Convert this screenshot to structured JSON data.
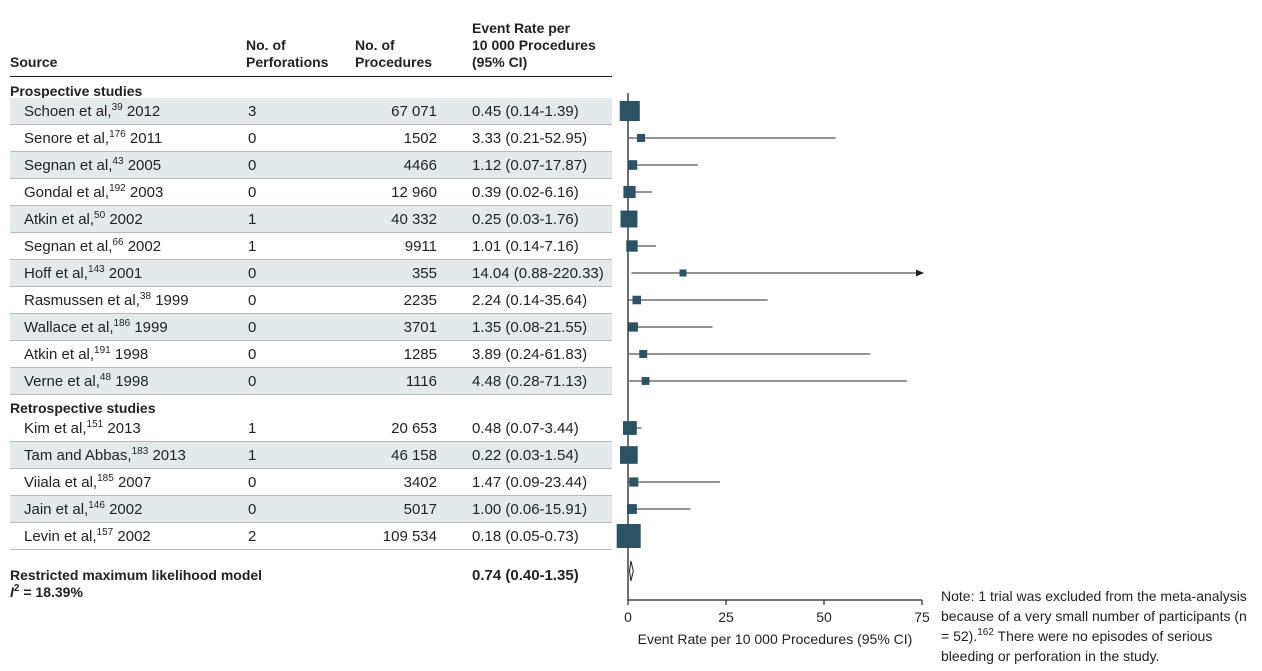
{
  "headers": {
    "source": "Source",
    "perforations": [
      "No. of",
      "Perforations"
    ],
    "procedures": [
      "No. of",
      "Procedures"
    ],
    "rate": [
      "Event Rate per",
      "10 000 Procedures",
      "(95% CI)"
    ]
  },
  "groups": [
    {
      "label": "Prospective studies",
      "rows": [
        {
          "author": "Schoen et al,",
          "ref": "39",
          "year": "2012",
          "perforations": "3",
          "procedures": "67 071",
          "rate_text": "0.45 (0.14-1.39)"
        },
        {
          "author": "Senore et al,",
          "ref": "176",
          "year": "2011",
          "perforations": "0",
          "procedures": "1502",
          "rate_text": "3.33 (0.21-52.95)"
        },
        {
          "author": "Segnan et al,",
          "ref": "43",
          "year": "2005",
          "perforations": "0",
          "procedures": "4466",
          "rate_text": "1.12 (0.07-17.87)"
        },
        {
          "author": "Gondal et al,",
          "ref": "192",
          "year": "2003",
          "perforations": "0",
          "procedures": "12 960",
          "rate_text": "0.39 (0.02-6.16)"
        },
        {
          "author": "Atkin et al,",
          "ref": "50",
          "year": "2002",
          "perforations": "1",
          "procedures": "40 332",
          "rate_text": "0.25 (0.03-1.76)"
        },
        {
          "author": "Segnan et al,",
          "ref": "66",
          "year": "2002",
          "perforations": "1",
          "procedures": "9911",
          "rate_text": "1.01 (0.14-7.16)"
        },
        {
          "author": "Hoff et al,",
          "ref": "143",
          "year": "2001",
          "perforations": "0",
          "procedures": "355",
          "rate_text": "14.04 (0.88-220.33)"
        },
        {
          "author": "Rasmussen et al,",
          "ref": "38",
          "year": "1999",
          "perforations": "0",
          "procedures": "2235",
          "rate_text": "2.24 (0.14-35.64)"
        },
        {
          "author": "Wallace et al,",
          "ref": "186",
          "year": "1999",
          "perforations": "0",
          "procedures": "3701",
          "rate_text": "1.35 (0.08-21.55)"
        },
        {
          "author": "Atkin et al,",
          "ref": "191",
          "year": "1998",
          "perforations": "0",
          "procedures": "1285",
          "rate_text": "3.89 (0.24-61.83)"
        },
        {
          "author": "Verne et al,",
          "ref": "48",
          "year": "1998",
          "perforations": "0",
          "procedures": "1116",
          "rate_text": "4.48 (0.28-71.13)"
        }
      ]
    },
    {
      "label": "Retrospective studies",
      "rows": [
        {
          "author": "Kim et al,",
          "ref": "151",
          "year": "2013",
          "perforations": "1",
          "procedures": "20 653",
          "rate_text": "0.48 (0.07-3.44)"
        },
        {
          "author": "Tam and Abbas,",
          "ref": "183",
          "year": "2013",
          "perforations": "1",
          "procedures": "46 158",
          "rate_text": "0.22 (0.03-1.54)"
        },
        {
          "author": "Viiala et al,",
          "ref": "185",
          "year": "2007",
          "perforations": "0",
          "procedures": "3402",
          "rate_text": "1.47 (0.09-23.44)"
        },
        {
          "author": "Jain et al,",
          "ref": "146",
          "year": "2002",
          "perforations": "0",
          "procedures": "5017",
          "rate_text": "1.00 (0.06-15.91)"
        },
        {
          "author": "Levin et al,",
          "ref": "157",
          "year": "2002",
          "perforations": "2",
          "procedures": "109 534",
          "rate_text": "0.18 (0.05-0.73)"
        }
      ]
    }
  ],
  "summary": {
    "label": "Restricted maximum likelihood model",
    "i2_symbol": "I",
    "i2_sup": "2",
    "i2_value": " = 18.39%",
    "rate_text": "0.74 (0.40-1.35)"
  },
  "axis": {
    "ticks": [
      "0",
      "25",
      "50",
      "75"
    ],
    "label": "Event Rate per 10 000 Procedures (95% CI)"
  },
  "note": {
    "text": "Note: 1 trial was excluded from the meta-analysis because of a very small number of participants (n = 52).",
    "ref": "162",
    "text2": "There were no episodes of serious bleeding or perforation in the study."
  },
  "colors": {
    "marker": "#2c5364",
    "shade": "#e4e9ec",
    "line": "#222222"
  },
  "chart_data": {
    "type": "forest",
    "xlim": [
      0,
      75
    ],
    "xlabel": "Event Rate per 10 000 Procedures (95% CI)",
    "studies": [
      {
        "name": "Schoen et al, 2012",
        "estimate": 0.45,
        "lower": 0.14,
        "upper": 1.39,
        "weight": 67071
      },
      {
        "name": "Senore et al, 2011",
        "estimate": 3.33,
        "lower": 0.21,
        "upper": 52.95,
        "weight": 1502
      },
      {
        "name": "Segnan et al, 2005",
        "estimate": 1.12,
        "lower": 0.07,
        "upper": 17.87,
        "weight": 4466
      },
      {
        "name": "Gondal et al, 2003",
        "estimate": 0.39,
        "lower": 0.02,
        "upper": 6.16,
        "weight": 12960
      },
      {
        "name": "Atkin et al, 2002",
        "estimate": 0.25,
        "lower": 0.03,
        "upper": 1.76,
        "weight": 40332
      },
      {
        "name": "Segnan et al, 2002",
        "estimate": 1.01,
        "lower": 0.14,
        "upper": 7.16,
        "weight": 9911
      },
      {
        "name": "Hoff et al, 2001",
        "estimate": 14.04,
        "lower": 0.88,
        "upper": 220.33,
        "weight": 355
      },
      {
        "name": "Rasmussen et al, 1999",
        "estimate": 2.24,
        "lower": 0.14,
        "upper": 35.64,
        "weight": 2235
      },
      {
        "name": "Wallace et al, 1999",
        "estimate": 1.35,
        "lower": 0.08,
        "upper": 21.55,
        "weight": 3701
      },
      {
        "name": "Atkin et al, 1998",
        "estimate": 3.89,
        "lower": 0.24,
        "upper": 61.83,
        "weight": 1285
      },
      {
        "name": "Verne et al, 1998",
        "estimate": 4.48,
        "lower": 0.28,
        "upper": 71.13,
        "weight": 1116
      },
      {
        "name": "Kim et al, 2013",
        "estimate": 0.48,
        "lower": 0.07,
        "upper": 3.44,
        "weight": 20653
      },
      {
        "name": "Tam and Abbas, 2013",
        "estimate": 0.22,
        "lower": 0.03,
        "upper": 1.54,
        "weight": 46158
      },
      {
        "name": "Viiala et al, 2007",
        "estimate": 1.47,
        "lower": 0.09,
        "upper": 23.44,
        "weight": 3402
      },
      {
        "name": "Jain et al, 2002",
        "estimate": 1.0,
        "lower": 0.06,
        "upper": 15.91,
        "weight": 5017
      },
      {
        "name": "Levin et al, 2002",
        "estimate": 0.18,
        "lower": 0.05,
        "upper": 0.73,
        "weight": 109534
      }
    ],
    "pooled": {
      "estimate": 0.74,
      "lower": 0.4,
      "upper": 1.35
    }
  }
}
